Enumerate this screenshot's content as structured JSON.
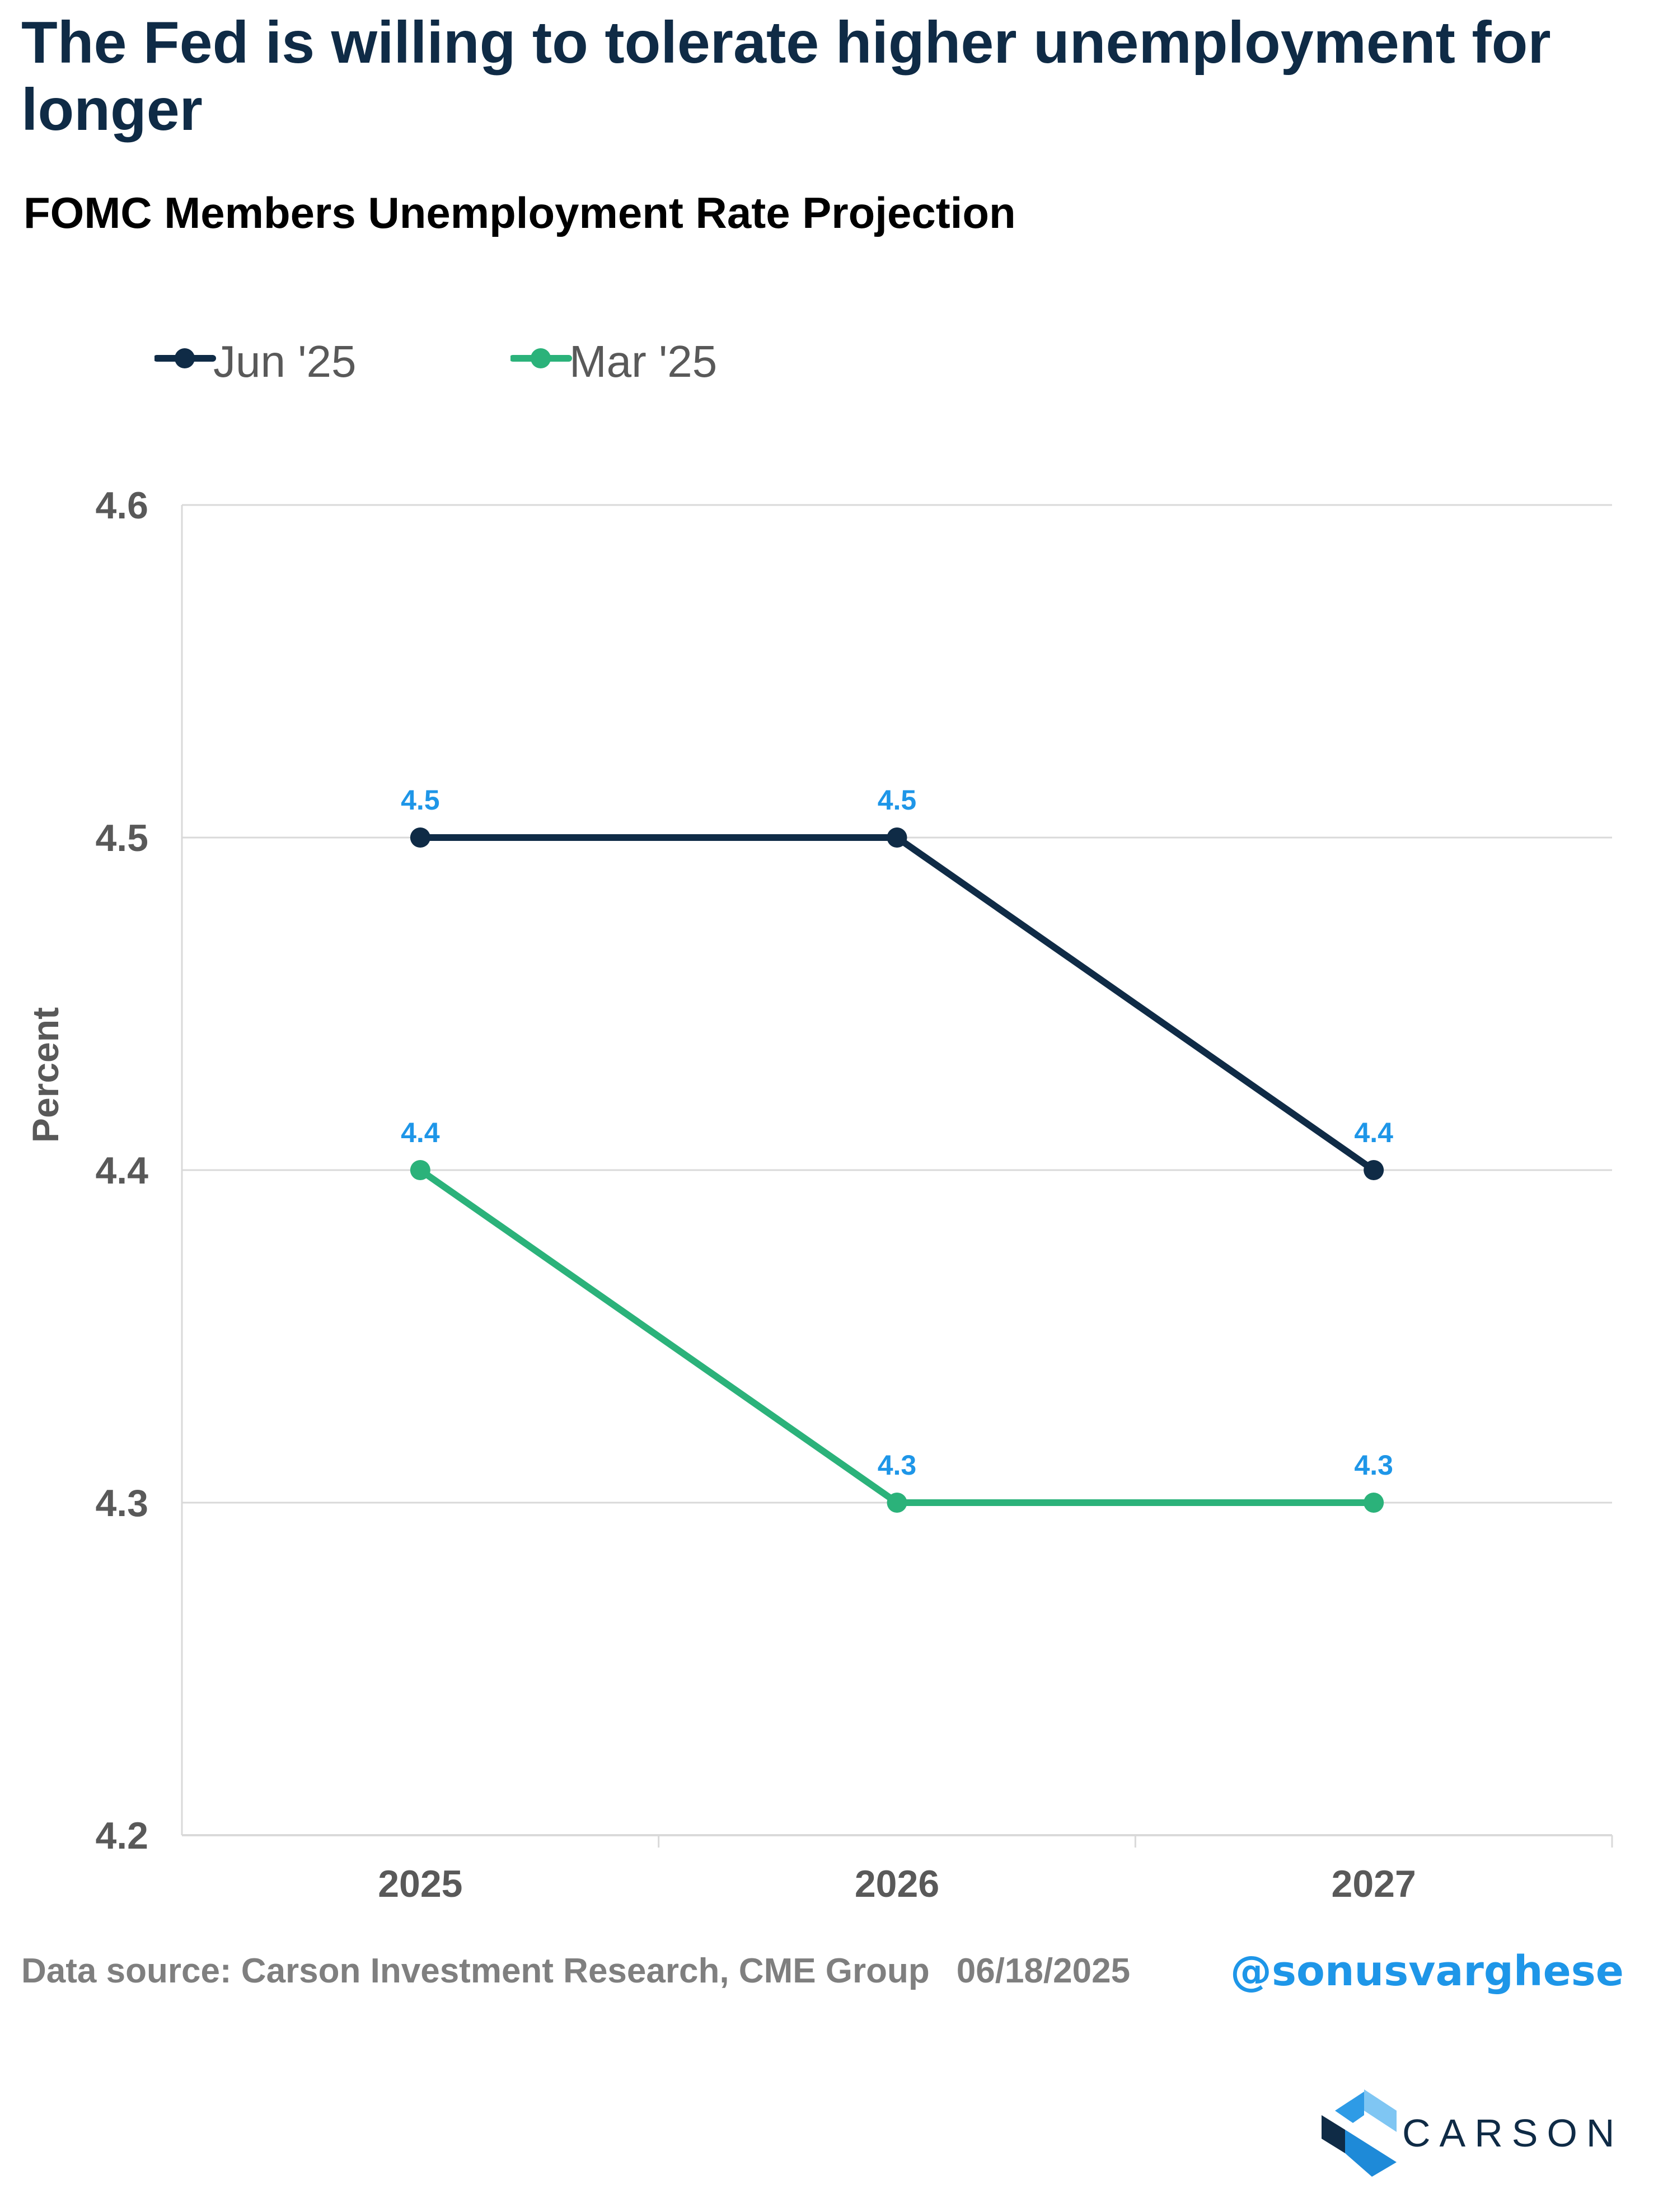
{
  "header": {
    "title": "The Fed is willing to tolerate higher unemployment for longer",
    "subtitle": "FOMC Members Unemployment Rate Projection"
  },
  "colors": {
    "jun_series": "#0f2b46",
    "mar_series": "#2bb27a",
    "data_label": "#1e96e8",
    "axis_text": "#595959",
    "grid": "#d9d9d9"
  },
  "chart_data": {
    "type": "line",
    "categories": [
      "2025",
      "2026",
      "2027"
    ],
    "series": [
      {
        "name": "Jun '25",
        "values": [
          4.5,
          4.5,
          4.4
        ],
        "color": "#0f2b46"
      },
      {
        "name": "Mar '25",
        "values": [
          4.4,
          4.3,
          4.3
        ],
        "color": "#2bb27a"
      }
    ],
    "ylabel": "Percent",
    "xlabel": "",
    "ylim": [
      4.2,
      4.6
    ],
    "yticks": [
      "4.2",
      "4.3",
      "4.4",
      "4.5",
      "4.6"
    ],
    "data_labels": true,
    "grid": true,
    "legend_position": "top-left"
  },
  "footer": {
    "source": "Data source: Carson Investment Research, CME Group",
    "date": "06/18/2025",
    "handle": "@sonusvarghese"
  },
  "logo": {
    "text": "CARSON",
    "icon": "carson-logo-icon"
  }
}
